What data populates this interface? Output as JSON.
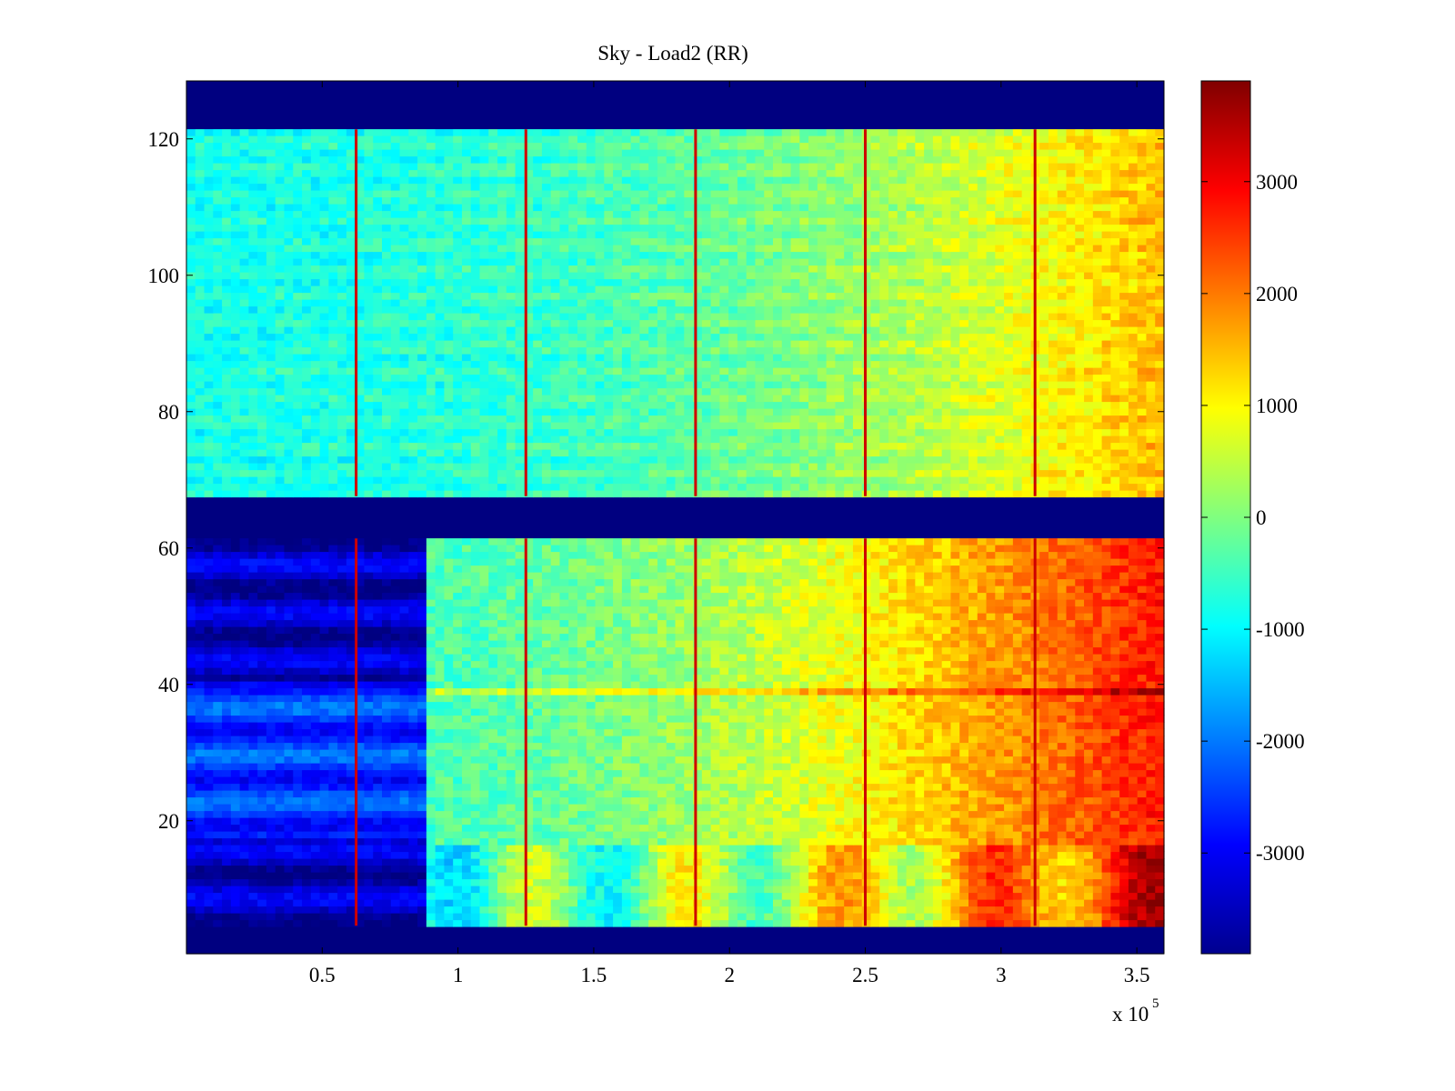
{
  "chart_data": {
    "type": "heatmap",
    "title": "Sky - Load2 (RR)",
    "xlabel": "",
    "ylabel": "",
    "xlim": [
      0,
      360000
    ],
    "ylim": [
      1,
      128
    ],
    "x_ticks": [
      50000,
      100000,
      150000,
      200000,
      250000,
      300000,
      350000
    ],
    "x_tick_labels": [
      "0.5",
      "1",
      "1.5",
      "2",
      "2.5",
      "3",
      "3.5"
    ],
    "x_exponent_label": "x 10",
    "x_exponent_power": "5",
    "y_ticks": [
      20,
      40,
      60,
      80,
      100,
      120
    ],
    "y_tick_labels": [
      "20",
      "40",
      "60",
      "80",
      "100",
      "120"
    ],
    "colormap": "jet",
    "clim": [
      -3900,
      3900
    ],
    "colorbar_ticks": [
      3000,
      2000,
      1000,
      0,
      -1000,
      -2000,
      -3000
    ],
    "colorbar_tick_labels": [
      "3000",
      "2000",
      "1000",
      "0",
      "-1000",
      "-2000",
      "-3000"
    ],
    "empty_row_bands": [
      [
        1,
        4
      ],
      [
        62,
        67
      ],
      [
        122,
        128
      ]
    ],
    "vertical_spike_x": [
      62500,
      125000,
      187500,
      250000,
      312500
    ],
    "upper_block": {
      "rows": [
        68,
        121
      ],
      "value_at_x0": -800,
      "value_at_xmax": 1500
    },
    "lower_block": {
      "rows": [
        5,
        61
      ],
      "low_region_x": [
        0,
        88000
      ],
      "low_value": -3400,
      "value_at_x0_after_gap": -400,
      "value_at_xmax": 2800
    },
    "horizontal_feature_row": 39
  }
}
